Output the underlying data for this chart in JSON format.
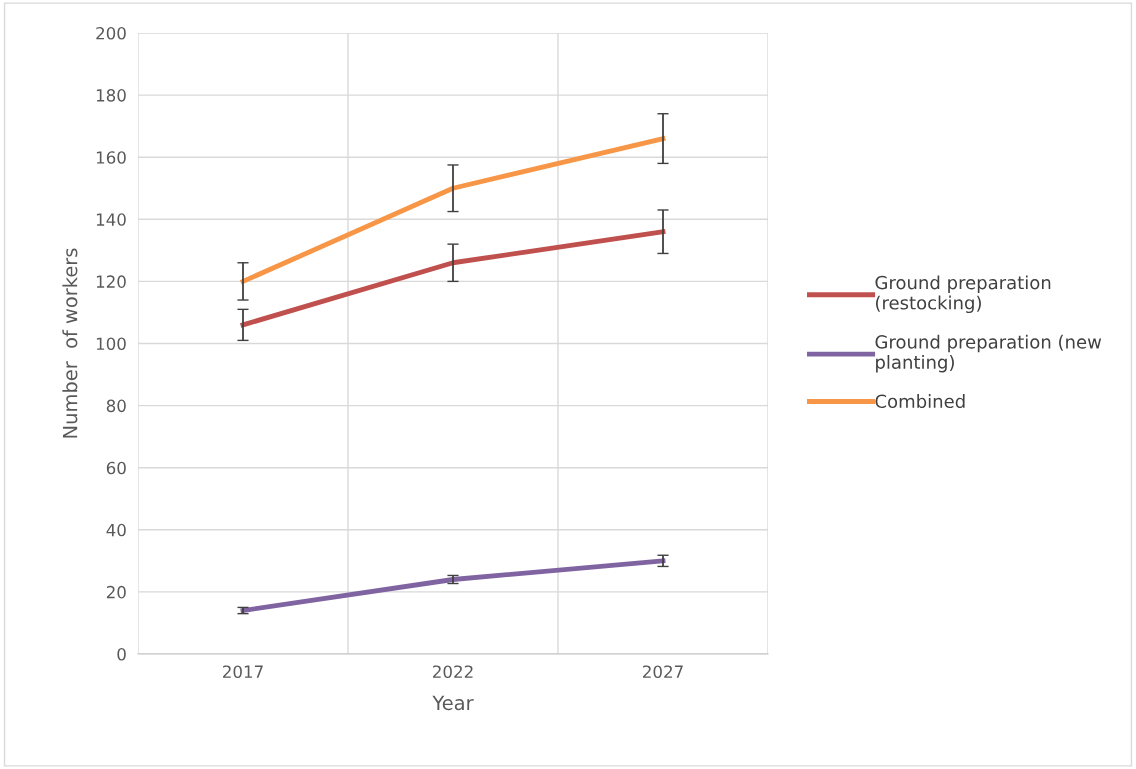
{
  "chart_data": {
    "type": "line",
    "xlabel": "Year",
    "ylabel": "Number  of workers",
    "categories": [
      "2017",
      "2022",
      "2027"
    ],
    "series": [
      {
        "name": "Ground preparation (restocking)",
        "color": "#c0504d",
        "values": [
          106,
          126,
          136
        ],
        "errors": [
          5,
          6,
          7
        ]
      },
      {
        "name": "Ground preparation (new planting)",
        "color": "#8064a2",
        "values": [
          14,
          24,
          30
        ],
        "errors": [
          1,
          1.3,
          1.8
        ]
      },
      {
        "name": "Combined",
        "color": "#f79646",
        "values": [
          120,
          150,
          166
        ],
        "errors": [
          6,
          7.5,
          8
        ]
      }
    ],
    "ylim": [
      0,
      200
    ],
    "yticks": [
      0,
      20,
      40,
      60,
      80,
      100,
      120,
      140,
      160,
      180,
      200
    ],
    "grid": true,
    "legend": "right",
    "marker": "none",
    "line_style": "solid"
  }
}
